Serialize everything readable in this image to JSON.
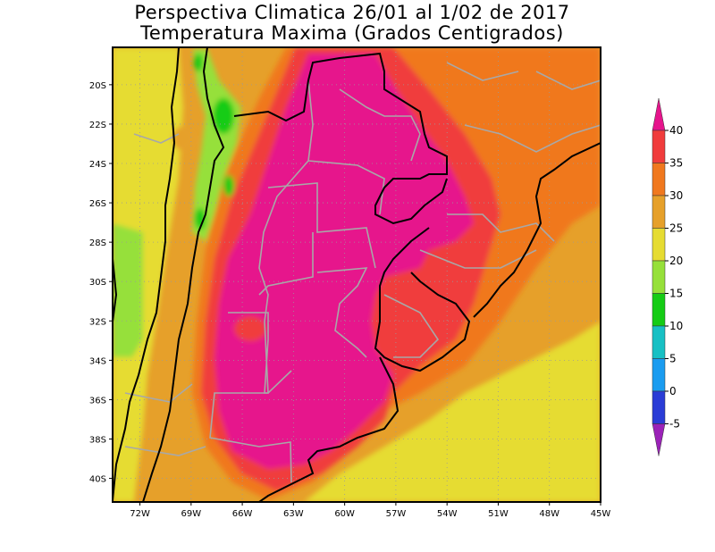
{
  "title": {
    "line1": "Perspectiva Climatica 26/01 al 1/02 de 2017",
    "line2": "Temperatura Maxima (Grados Centigrados)"
  },
  "map": {
    "lat_labels": [
      "20S",
      "22S",
      "24S",
      "26S",
      "28S",
      "30S",
      "32S",
      "34S",
      "36S",
      "38S",
      "40S"
    ],
    "lon_labels": [
      "72W",
      "69W",
      "66W",
      "63W",
      "60W",
      "57W",
      "54W",
      "51W",
      "48W",
      "45W"
    ],
    "lat_values": [
      -20,
      -22,
      -24,
      -26,
      -28,
      -30,
      -32,
      -34,
      -36,
      -38,
      -40
    ],
    "lon_values": [
      -72,
      -69,
      -66,
      -63,
      -60,
      -57,
      -54,
      -51,
      -48,
      -45
    ],
    "extent": {
      "lon_min": -73.6,
      "lon_max": -45,
      "lat_min": -41.2,
      "lat_max": -18.1
    },
    "grid": "dotted"
  },
  "colorbar": {
    "labels": [
      "40",
      "35",
      "30",
      "25",
      "20",
      "15",
      "10",
      "5",
      "0",
      "-5"
    ],
    "levels": [
      -5,
      0,
      5,
      10,
      15,
      20,
      25,
      30,
      35,
      40
    ],
    "colors": [
      "#9b22b8",
      "#2a3cd6",
      "#1a9cf0",
      "#17c0c4",
      "#15cc15",
      "#96e03a",
      "#e6dc32",
      "#e6a02a",
      "#f0781e",
      "#f03c3c",
      "#e6148c"
    ]
  }
}
